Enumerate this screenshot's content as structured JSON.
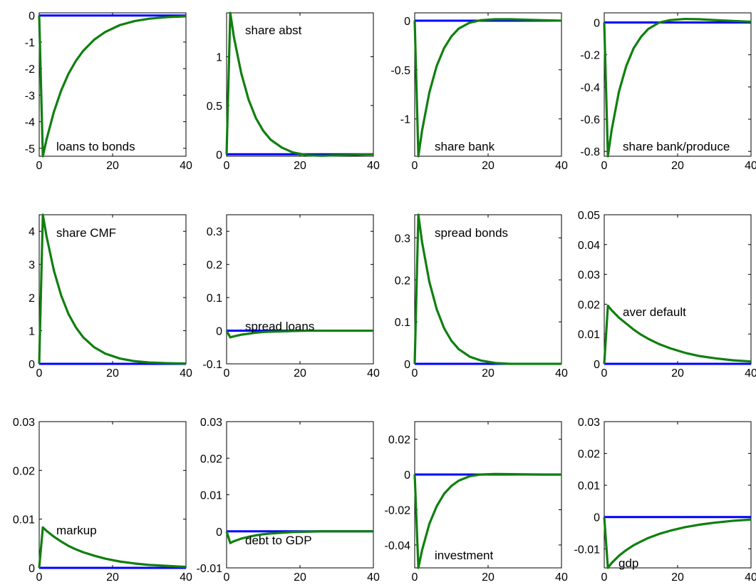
{
  "colors": {
    "baseline": "#0000ff",
    "response": "#107f10"
  },
  "chart_data": [
    {
      "type": "line",
      "title": "loans to bonds",
      "xlim": [
        0,
        40
      ],
      "ylim": [
        -5.3,
        0.1
      ],
      "xticks": [
        0,
        20,
        40
      ],
      "yticks": [
        0,
        -1,
        -2,
        -3,
        -4,
        -5
      ],
      "ytick_labels": [
        "0",
        "-1",
        "-2",
        "-3",
        "-4",
        "-5"
      ],
      "series": [
        {
          "role": "baseline",
          "x": [
            0,
            40
          ],
          "y": [
            0,
            0
          ]
        },
        {
          "role": "response",
          "x": [
            0,
            1,
            2,
            4,
            6,
            8,
            10,
            12,
            15,
            18,
            22,
            26,
            30,
            35,
            40
          ],
          "y": [
            0,
            -5.3,
            -4.67,
            -3.63,
            -2.82,
            -2.19,
            -1.71,
            -1.33,
            -0.91,
            -0.62,
            -0.36,
            -0.21,
            -0.12,
            -0.06,
            -0.03
          ]
        }
      ]
    },
    {
      "type": "line",
      "title": "share abst",
      "xlim": [
        0,
        40
      ],
      "ylim": [
        -0.02,
        1.45
      ],
      "xticks": [
        0,
        20,
        40
      ],
      "yticks": [
        0,
        0.5,
        1
      ],
      "ytick_labels": [
        "0",
        "0.5",
        "1"
      ],
      "series": [
        {
          "role": "baseline",
          "x": [
            0,
            40
          ],
          "y": [
            0,
            0
          ]
        },
        {
          "role": "response",
          "x": [
            0,
            1,
            2,
            4,
            6,
            8,
            10,
            12,
            15,
            18,
            22,
            26,
            30,
            35,
            40
          ],
          "y": [
            0,
            1.45,
            1.2,
            0.83,
            0.56,
            0.37,
            0.24,
            0.15,
            0.07,
            0.02,
            -0.01,
            -0.015,
            -0.01,
            -0.005,
            0
          ]
        }
      ]
    },
    {
      "type": "line",
      "title": "share bank",
      "xlim": [
        0,
        40
      ],
      "ylim": [
        -1.38,
        0.08
      ],
      "xticks": [
        0,
        20,
        40
      ],
      "yticks": [
        0,
        -0.5,
        -1
      ],
      "ytick_labels": [
        "0",
        "-0.5",
        "-1"
      ],
      "series": [
        {
          "role": "baseline",
          "x": [
            0,
            40
          ],
          "y": [
            0,
            0
          ]
        },
        {
          "role": "response",
          "x": [
            0,
            1,
            2,
            4,
            6,
            8,
            10,
            12,
            15,
            18,
            22,
            26,
            30,
            35,
            40
          ],
          "y": [
            0,
            -1.38,
            -1.12,
            -0.73,
            -0.46,
            -0.28,
            -0.16,
            -0.08,
            -0.02,
            0.005,
            0.015,
            0.015,
            0.01,
            0.005,
            0
          ]
        }
      ]
    },
    {
      "type": "line",
      "title": "share bank/produce",
      "xlim": [
        0,
        40
      ],
      "ylim": [
        -0.83,
        0.06
      ],
      "xticks": [
        0,
        20,
        40
      ],
      "yticks": [
        0,
        -0.2,
        -0.4,
        -0.6,
        -0.8
      ],
      "ytick_labels": [
        "0",
        "-0.2",
        "-0.4",
        "-0.6",
        "-0.8"
      ],
      "series": [
        {
          "role": "baseline",
          "x": [
            0,
            40
          ],
          "y": [
            0,
            0
          ]
        },
        {
          "role": "response",
          "x": [
            0,
            1,
            2,
            4,
            6,
            8,
            10,
            12,
            15,
            18,
            22,
            26,
            30,
            35,
            40
          ],
          "y": [
            0,
            -0.83,
            -0.67,
            -0.43,
            -0.27,
            -0.16,
            -0.09,
            -0.04,
            0.0,
            0.015,
            0.022,
            0.02,
            0.015,
            0.01,
            0.005
          ]
        }
      ]
    },
    {
      "type": "line",
      "title": "share CMF",
      "xlim": [
        0,
        40
      ],
      "ylim": [
        0,
        4.5
      ],
      "xticks": [
        0,
        20,
        40
      ],
      "yticks": [
        0,
        1,
        2,
        3,
        4
      ],
      "ytick_labels": [
        "0",
        "1",
        "2",
        "3",
        "4"
      ],
      "series": [
        {
          "role": "baseline",
          "x": [
            0,
            40
          ],
          "y": [
            0,
            0
          ]
        },
        {
          "role": "response",
          "x": [
            0,
            1,
            2,
            4,
            6,
            8,
            10,
            12,
            15,
            18,
            22,
            26,
            30,
            35,
            40
          ],
          "y": [
            0,
            4.5,
            3.85,
            2.82,
            2.06,
            1.5,
            1.1,
            0.8,
            0.5,
            0.31,
            0.16,
            0.08,
            0.04,
            0.02,
            0.01
          ]
        }
      ]
    },
    {
      "type": "line",
      "title": "spread loans",
      "xlim": [
        0,
        40
      ],
      "ylim": [
        -0.1,
        0.35
      ],
      "xticks": [
        0,
        20,
        40
      ],
      "yticks": [
        0.3,
        0.2,
        0.1,
        0,
        -0.1
      ],
      "ytick_labels": [
        "0.3",
        "0.2",
        "0.1",
        "0",
        "-0.1"
      ],
      "series": [
        {
          "role": "baseline",
          "x": [
            0,
            40
          ],
          "y": [
            0,
            0
          ]
        },
        {
          "role": "response",
          "x": [
            0,
            1,
            2,
            4,
            6,
            8,
            10,
            12,
            15,
            18,
            22,
            26,
            30,
            35,
            40
          ],
          "y": [
            0,
            -0.02,
            -0.017,
            -0.012,
            -0.009,
            -0.006,
            -0.004,
            -0.003,
            -0.002,
            -0.001,
            0,
            0,
            0,
            0,
            0
          ]
        }
      ]
    },
    {
      "type": "line",
      "title": "spread bonds",
      "xlim": [
        0,
        40
      ],
      "ylim": [
        0,
        0.355
      ],
      "xticks": [
        0,
        20,
        40
      ],
      "yticks": [
        0,
        0.1,
        0.2,
        0.3
      ],
      "ytick_labels": [
        "0",
        "0.1",
        "0.2",
        "0.3"
      ],
      "series": [
        {
          "role": "baseline",
          "x": [
            0,
            40
          ],
          "y": [
            0,
            0
          ]
        },
        {
          "role": "response",
          "x": [
            0,
            1,
            2,
            4,
            6,
            8,
            10,
            12,
            15,
            18,
            22,
            26,
            30,
            35,
            40
          ],
          "y": [
            0,
            0.355,
            0.29,
            0.195,
            0.13,
            0.085,
            0.055,
            0.035,
            0.017,
            0.008,
            0.002,
            0,
            0,
            0,
            0
          ]
        }
      ]
    },
    {
      "type": "line",
      "title": "aver default",
      "xlim": [
        0,
        40
      ],
      "ylim": [
        0,
        0.05
      ],
      "xticks": [
        0,
        20,
        40
      ],
      "yticks": [
        0,
        0.01,
        0.02,
        0.03,
        0.04,
        0.05
      ],
      "ytick_labels": [
        "0",
        "0.01",
        "0.02",
        "0.03",
        "0.04",
        "0.05"
      ],
      "series": [
        {
          "role": "baseline",
          "x": [
            0,
            40
          ],
          "y": [
            0,
            0
          ]
        },
        {
          "role": "response",
          "x": [
            0,
            1,
            2,
            4,
            6,
            8,
            10,
            12,
            15,
            18,
            22,
            26,
            30,
            35,
            40
          ],
          "y": [
            0,
            0.0195,
            0.018,
            0.0155,
            0.0135,
            0.0115,
            0.0098,
            0.0084,
            0.0066,
            0.0052,
            0.0037,
            0.0026,
            0.0019,
            0.0012,
            0.0008
          ]
        }
      ]
    },
    {
      "type": "line",
      "title": "markup",
      "xlim": [
        0,
        40
      ],
      "ylim": [
        0,
        0.03
      ],
      "xticks": [
        0,
        20,
        40
      ],
      "yticks": [
        0,
        0.01,
        0.02,
        0.03
      ],
      "ytick_labels": [
        "0",
        "0.01",
        "0.02",
        "0.03"
      ],
      "series": [
        {
          "role": "baseline",
          "x": [
            0,
            40
          ],
          "y": [
            0,
            0
          ]
        },
        {
          "role": "response",
          "x": [
            0,
            1,
            2,
            4,
            6,
            8,
            10,
            12,
            15,
            18,
            22,
            26,
            30,
            35,
            40
          ],
          "y": [
            0,
            0.0083,
            0.0076,
            0.0064,
            0.0054,
            0.0045,
            0.0038,
            0.0032,
            0.0025,
            0.0019,
            0.0013,
            0.0009,
            0.0006,
            0.0004,
            0.0002
          ]
        }
      ]
    },
    {
      "type": "line",
      "title": "debt to GDP",
      "xlim": [
        0,
        40
      ],
      "ylim": [
        -0.01,
        0.03
      ],
      "xticks": [
        0,
        20,
        40
      ],
      "yticks": [
        0.03,
        0.02,
        0.01,
        0,
        -0.01
      ],
      "ytick_labels": [
        "0.03",
        "0.02",
        "0.01",
        "0",
        "-0.01"
      ],
      "series": [
        {
          "role": "baseline",
          "x": [
            0,
            40
          ],
          "y": [
            0,
            0
          ]
        },
        {
          "role": "response",
          "x": [
            0,
            1,
            2,
            4,
            6,
            8,
            10,
            12,
            15,
            18,
            22,
            26,
            30,
            35,
            40
          ],
          "y": [
            0,
            -0.0032,
            -0.0027,
            -0.002,
            -0.0015,
            -0.0011,
            -0.0008,
            -0.0006,
            -0.0004,
            -0.0002,
            -0.0001,
            0,
            0,
            0,
            0
          ]
        }
      ]
    },
    {
      "type": "line",
      "title": "investment",
      "xlim": [
        0,
        40
      ],
      "ylim": [
        -0.053,
        0.03
      ],
      "xticks": [
        0,
        20,
        40
      ],
      "yticks": [
        0.02,
        0,
        -0.02,
        -0.04
      ],
      "ytick_labels": [
        "0.02",
        "0",
        "-0.02",
        "-0.04"
      ],
      "series": [
        {
          "role": "baseline",
          "x": [
            0,
            40
          ],
          "y": [
            0,
            0
          ]
        },
        {
          "role": "response",
          "x": [
            0,
            1,
            2,
            4,
            6,
            8,
            10,
            12,
            15,
            18,
            22,
            26,
            30,
            35,
            40
          ],
          "y": [
            0,
            -0.053,
            -0.043,
            -0.028,
            -0.018,
            -0.011,
            -0.0065,
            -0.0035,
            -0.001,
            0,
            0.0003,
            0.0002,
            0.0001,
            0,
            0
          ]
        }
      ]
    },
    {
      "type": "line",
      "title": "gdp",
      "xlim": [
        0,
        40
      ],
      "ylim": [
        -0.016,
        0.03
      ],
      "xticks": [
        0,
        20,
        40
      ],
      "yticks": [
        0.03,
        0.02,
        0.01,
        0,
        -0.01
      ],
      "ytick_labels": [
        "0.03",
        "0.02",
        "0.01",
        "0",
        "-0.01"
      ],
      "series": [
        {
          "role": "baseline",
          "x": [
            0,
            40
          ],
          "y": [
            0,
            0
          ]
        },
        {
          "role": "response",
          "x": [
            0,
            1,
            2,
            4,
            6,
            8,
            10,
            12,
            15,
            18,
            22,
            26,
            30,
            35,
            40
          ],
          "y": [
            0,
            -0.016,
            -0.0145,
            -0.0122,
            -0.0104,
            -0.0089,
            -0.0077,
            -0.0066,
            -0.0053,
            -0.0043,
            -0.0032,
            -0.0024,
            -0.0018,
            -0.0012,
            -0.0008
          ]
        }
      ]
    }
  ]
}
